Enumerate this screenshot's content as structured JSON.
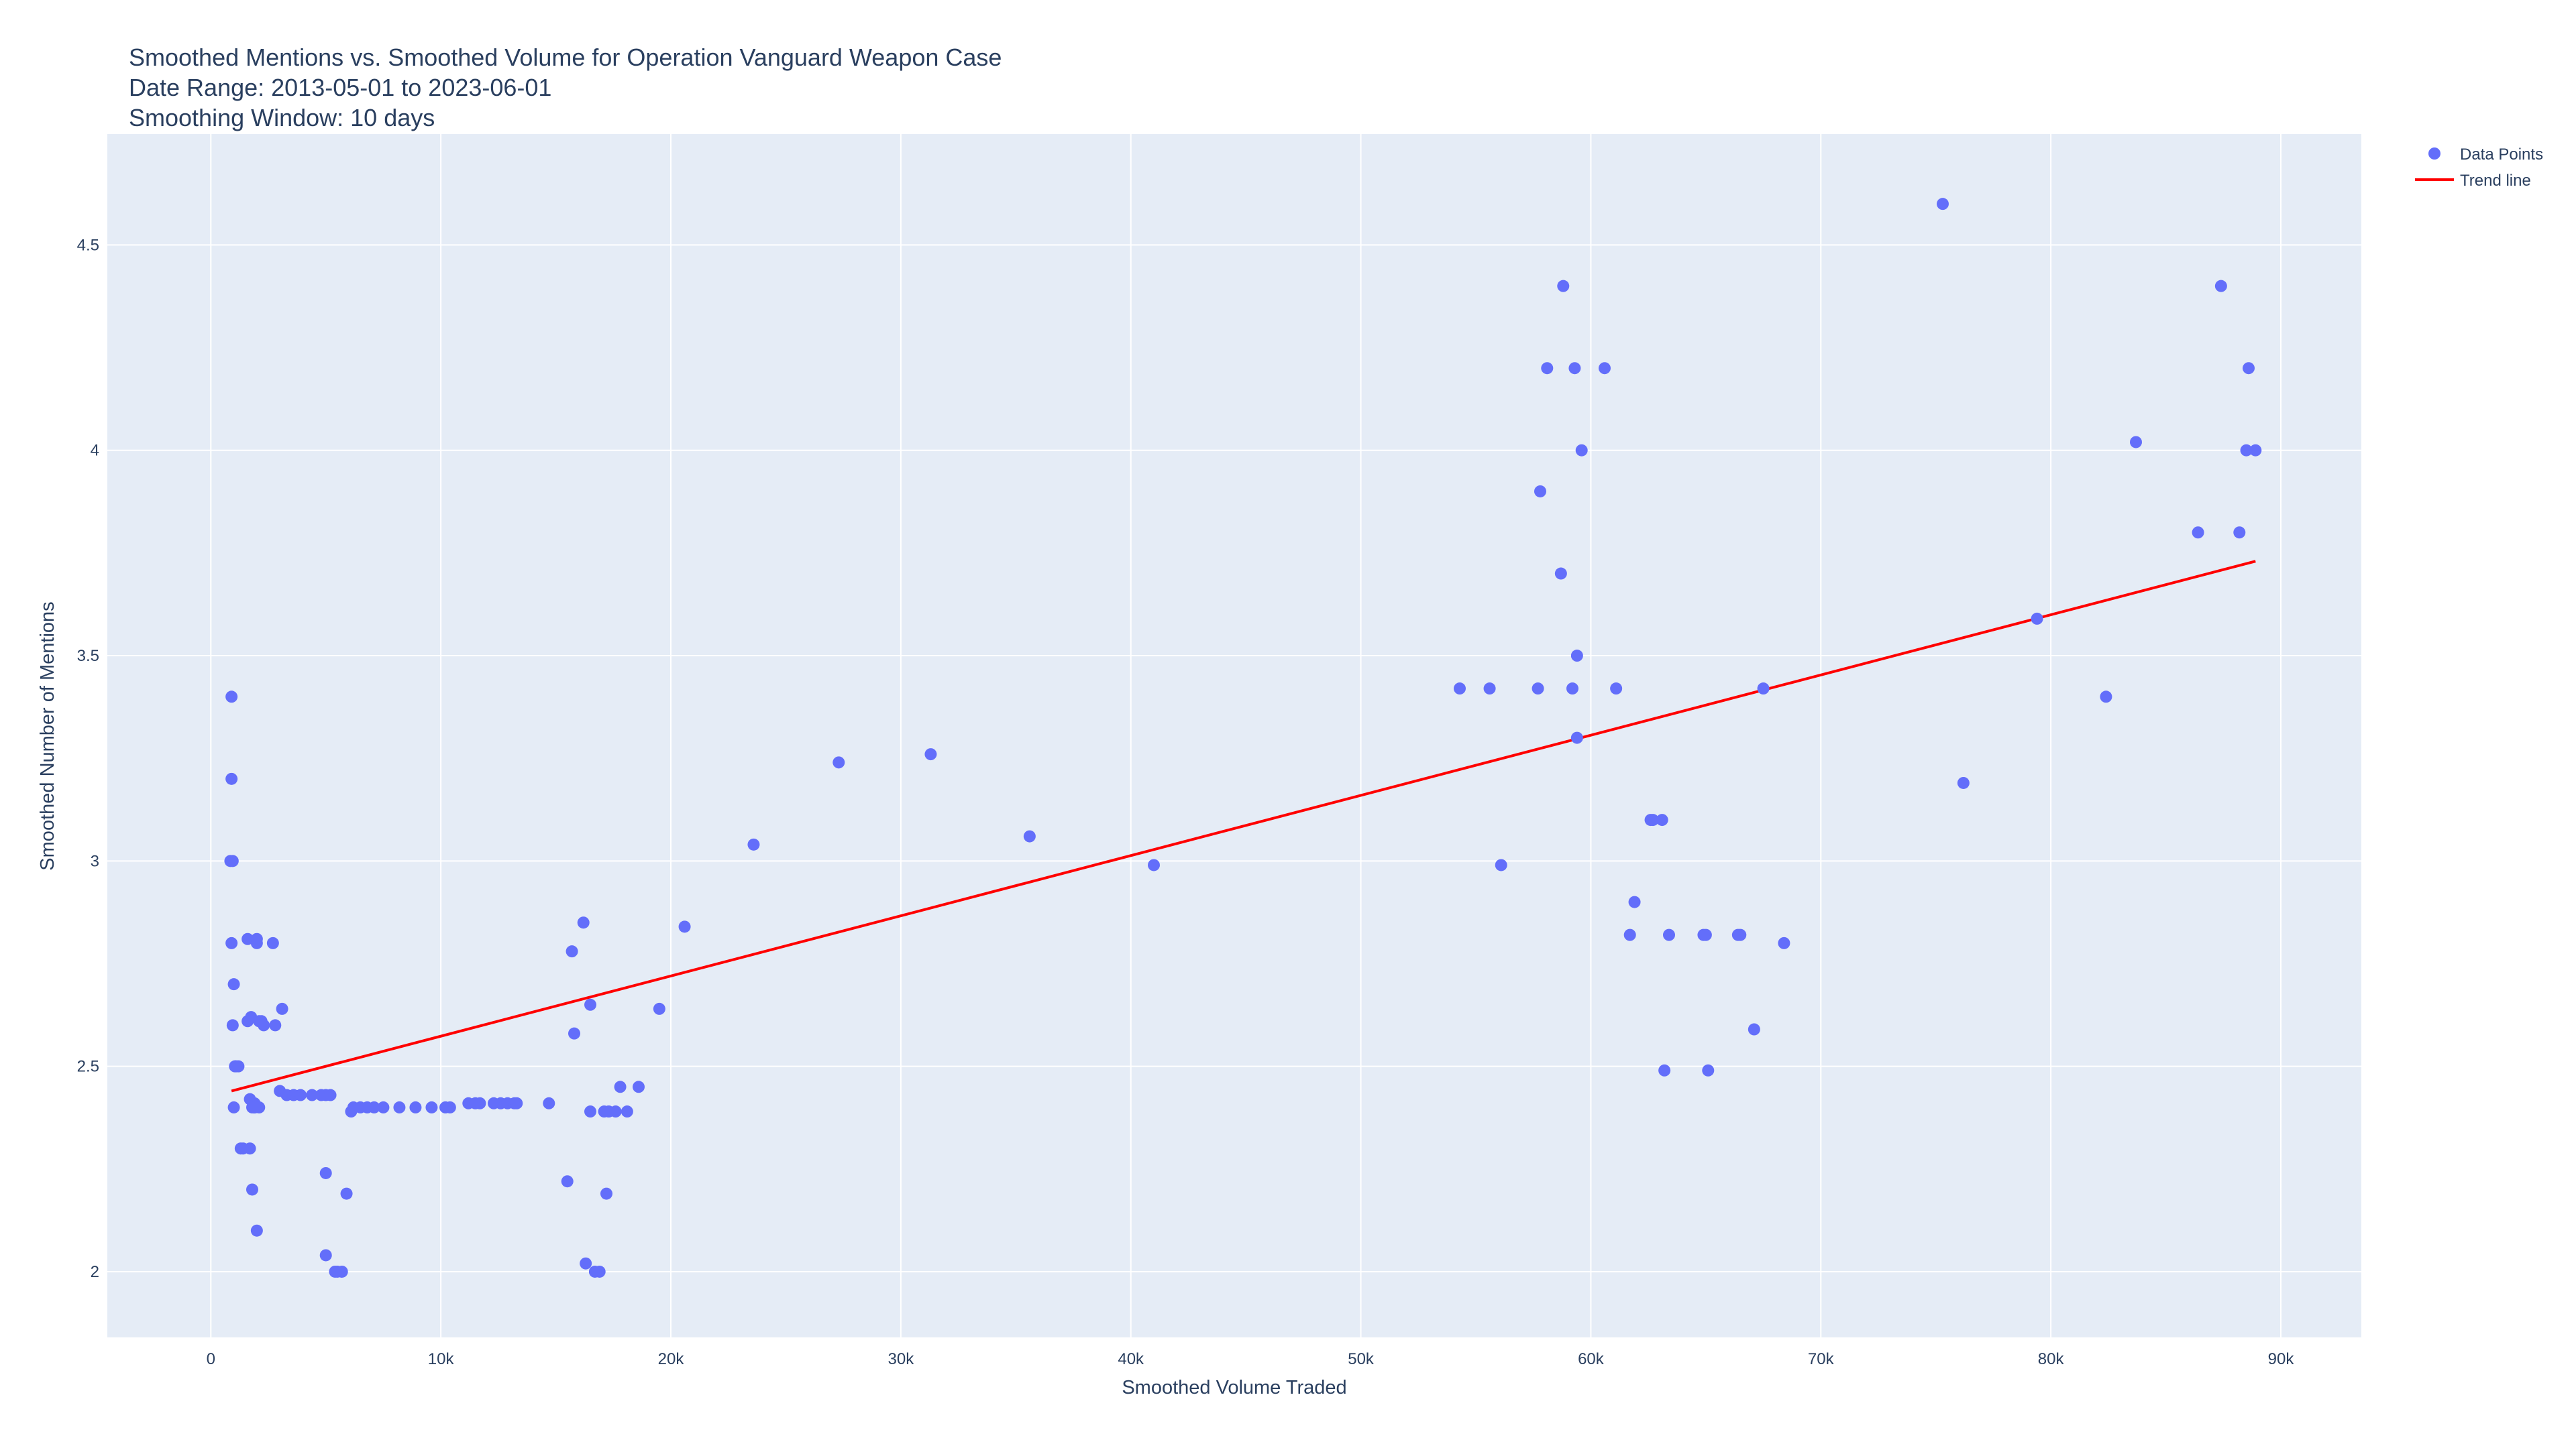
{
  "chart_data": {
    "type": "scatter",
    "title": "Smoothed Mentions vs. Smoothed Volume for Operation Vanguard Weapon Case",
    "subtitle_lines": [
      "Date Range: 2013-05-01 to 2023-06-01",
      "Smoothing Window: 10 days"
    ],
    "xlabel": "Smoothed Volume Traded",
    "ylabel": "Smoothed Number of Mentions",
    "xlim": [
      -4500,
      93500
    ],
    "ylim": [
      1.84,
      4.77
    ],
    "x_ticks": [
      0,
      10000,
      20000,
      30000,
      40000,
      50000,
      60000,
      70000,
      80000,
      90000
    ],
    "x_tick_labels": [
      "0",
      "10k",
      "20k",
      "30k",
      "40k",
      "50k",
      "60k",
      "70k",
      "80k",
      "90k"
    ],
    "y_ticks": [
      2,
      2.5,
      3,
      3.5,
      4,
      4.5
    ],
    "y_tick_labels": [
      "2",
      "2.5",
      "3",
      "3.5",
      "4",
      "4.5"
    ],
    "grid": true,
    "legend_position": "top-right",
    "colors": {
      "points": "#636efa",
      "trend": "#ff0000",
      "plot_bg": "#e5ecf6",
      "grid": "#ffffff",
      "text": "#2a3f5f"
    },
    "series": [
      {
        "name": "Data Points",
        "mode": "markers",
        "x": [
          900,
          900,
          850,
          950,
          900,
          1000,
          950,
          1050,
          1100,
          1200,
          1300,
          1000,
          1400,
          1600,
          1600,
          1750,
          1700,
          1850,
          1800,
          1900,
          2000,
          2000,
          2100,
          2200,
          2300,
          2700,
          1700,
          1800,
          2000,
          2100,
          2800,
          3100,
          3000,
          3300,
          3600,
          3900,
          4400,
          4800,
          5000,
          5200,
          1900,
          1900,
          5000,
          5000,
          5400,
          5500,
          5700,
          5900,
          6100,
          6200,
          6500,
          6800,
          7100,
          7500,
          8200,
          8900,
          9600,
          10200,
          10400,
          11200,
          11500,
          11700,
          12300,
          12600,
          12900,
          13200,
          13300,
          14700,
          15500,
          15800,
          15700,
          16200,
          16500,
          16300,
          16500,
          16700,
          16900,
          17100,
          17300,
          17600,
          17800,
          18100,
          18600,
          17200,
          19500,
          20600,
          23600,
          27300,
          31300,
          35600,
          41000,
          54300,
          55600,
          56100,
          57700,
          57800,
          58100,
          58700,
          58800,
          59200,
          59300,
          59400,
          59600,
          59400,
          60600,
          61100,
          61700,
          61900,
          62600,
          62700,
          63100,
          63400,
          63200,
          64900,
          65000,
          65100,
          66400,
          66500,
          67100,
          67500,
          68400,
          75300,
          76200,
          79400,
          82400,
          83700,
          86400,
          87400,
          88200,
          88500,
          88600,
          88900
        ],
        "y": [
          3.4,
          3.2,
          3.0,
          3.0,
          2.8,
          2.7,
          2.6,
          2.5,
          2.5,
          2.5,
          2.3,
          2.4,
          2.3,
          2.81,
          2.61,
          2.62,
          2.42,
          2.41,
          2.4,
          2.41,
          2.8,
          2.81,
          2.61,
          2.61,
          2.6,
          2.8,
          2.3,
          2.2,
          2.1,
          2.4,
          2.6,
          2.64,
          2.44,
          2.43,
          2.43,
          2.43,
          2.43,
          2.43,
          2.43,
          2.43,
          2.4,
          2.4,
          2.24,
          2.04,
          2.0,
          2.0,
          2.0,
          2.19,
          2.39,
          2.4,
          2.4,
          2.4,
          2.4,
          2.4,
          2.4,
          2.4,
          2.4,
          2.4,
          2.4,
          2.41,
          2.41,
          2.41,
          2.41,
          2.41,
          2.41,
          2.41,
          2.41,
          2.41,
          2.22,
          2.58,
          2.78,
          2.85,
          2.65,
          2.02,
          2.39,
          2.0,
          2.0,
          2.39,
          2.39,
          2.39,
          2.45,
          2.39,
          2.45,
          2.19,
          2.64,
          2.84,
          3.04,
          3.24,
          3.26,
          3.06,
          2.99,
          3.42,
          3.42,
          2.99,
          3.42,
          3.9,
          4.2,
          3.7,
          4.4,
          3.42,
          4.2,
          3.5,
          4.0,
          3.3,
          4.2,
          3.42,
          2.82,
          2.9,
          3.1,
          3.1,
          3.1,
          2.82,
          2.49,
          2.82,
          2.82,
          2.49,
          2.82,
          2.82,
          2.59,
          3.42,
          2.8,
          4.6,
          3.19,
          3.59,
          3.4,
          4.02,
          3.8,
          4.4,
          3.8,
          4.0,
          4.2,
          4.0
        ]
      },
      {
        "name": "Trend line",
        "mode": "lines",
        "x": [
          900,
          88900
        ],
        "y": [
          2.44,
          3.73
        ]
      }
    ]
  }
}
